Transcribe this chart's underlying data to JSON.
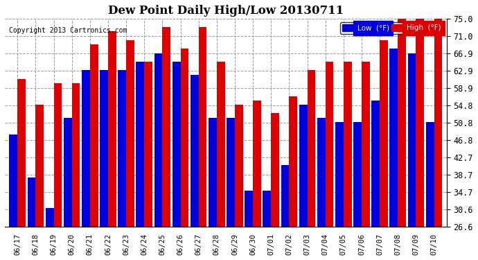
{
  "title": "Dew Point Daily High/Low 20130711",
  "copyright": "Copyright 2013 Cartronics.com",
  "categories": [
    "06/17",
    "06/18",
    "06/19",
    "06/20",
    "06/21",
    "06/22",
    "06/23",
    "06/24",
    "06/25",
    "06/26",
    "06/27",
    "06/28",
    "06/29",
    "06/30",
    "07/01",
    "07/02",
    "07/03",
    "07/04",
    "07/05",
    "07/06",
    "07/07",
    "07/08",
    "07/09",
    "07/10"
  ],
  "low_values": [
    48,
    38,
    31,
    52,
    63,
    63,
    63,
    65,
    67,
    65,
    62,
    52,
    52,
    35,
    35,
    41,
    55,
    52,
    51,
    51,
    56,
    68,
    67,
    51
  ],
  "high_values": [
    61,
    55,
    60,
    60,
    69,
    72,
    70,
    65,
    73,
    68,
    73,
    65,
    55,
    56,
    53,
    57,
    63,
    65,
    65,
    65,
    70,
    75,
    75,
    75
  ],
  "low_color": "#0000dd",
  "high_color": "#dd0000",
  "background_color": "#ffffff",
  "grid_color": "#999999",
  "ylim_min": 26.6,
  "ylim_max": 75.0,
  "yticks": [
    26.6,
    30.6,
    34.7,
    38.7,
    42.7,
    46.8,
    50.8,
    54.8,
    58.9,
    62.9,
    66.9,
    71.0,
    75.0
  ],
  "legend_low_label": "Low  (°F)",
  "legend_high_label": "High  (°F)",
  "bar_bottom": 26.6
}
